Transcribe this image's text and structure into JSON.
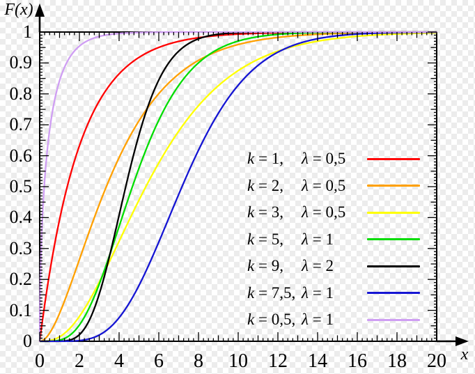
{
  "chart_data": {
    "type": "line",
    "title": "",
    "xlabel": "x",
    "ylabel": "F(x)",
    "xlim": [
      0,
      20
    ],
    "ylim": [
      0,
      1
    ],
    "grid": false,
    "background": "transparent-checkerboard",
    "checker_colors": [
      "#ffffff",
      "#ececec"
    ],
    "axes_color": "#000000",
    "function": "Gamma distribution CDF: F(x) = P(k, lambda*x) (regularized lower incomplete gamma)",
    "x_tick_labels": [
      "0",
      "2",
      "4",
      "6",
      "8",
      "10",
      "12",
      "14",
      "16",
      "18",
      "20"
    ],
    "y_tick_labels": [
      "0",
      "0.1",
      "0.2",
      "0.3",
      "0.4",
      "0.5",
      "0.6",
      "0.7",
      "0.8",
      "0.9",
      "1"
    ],
    "x_major_step": 2,
    "x_medium_step": 1,
    "x_minor_step": 0.25,
    "y_major_step": 0.1,
    "y_medium_step": 0.05,
    "y_minor_step": 0.01,
    "legend_position": "inside center-right",
    "series": [
      {
        "k": 1,
        "lambda": 0.5,
        "color": "#ff0000",
        "var1": "k",
        "eq1": " = 1,",
        "var2": "λ",
        "eq2": " = 0,5"
      },
      {
        "k": 2,
        "lambda": 0.5,
        "color": "#ffa000",
        "var1": "k",
        "eq1": " = 2,",
        "var2": "λ",
        "eq2": " = 0,5"
      },
      {
        "k": 3,
        "lambda": 0.5,
        "color": "#ffff00",
        "var1": "k",
        "eq1": " = 3,",
        "var2": "λ",
        "eq2": " = 0,5"
      },
      {
        "k": 5,
        "lambda": 1,
        "color": "#00dd00",
        "var1": "k",
        "eq1": " = 5,",
        "var2": "λ",
        "eq2": " = 1"
      },
      {
        "k": 9,
        "lambda": 2,
        "color": "#000000",
        "var1": "k",
        "eq1": " = 9,",
        "var2": "λ",
        "eq2": " = 2"
      },
      {
        "k": 7.5,
        "lambda": 1,
        "color": "#1515d3",
        "var1": "k",
        "eq1": " = 7,5,",
        "var2": "λ",
        "eq2": " = 1"
      },
      {
        "k": 0.5,
        "lambda": 1,
        "color": "#cf9ef3",
        "var1": "k",
        "eq1": " = 0,5,",
        "var2": "λ",
        "eq2": " = 1"
      }
    ]
  }
}
